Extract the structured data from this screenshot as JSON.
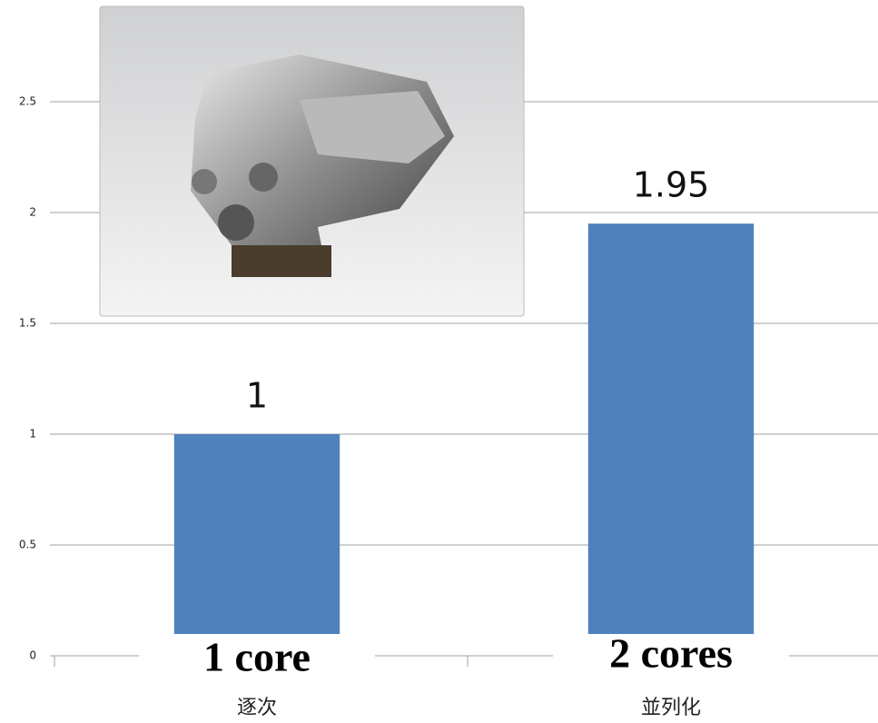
{
  "chart_data": {
    "type": "bar",
    "categories": [
      "逐次",
      "並列化"
    ],
    "values": [
      1,
      1.95
    ],
    "color": "#4f81bd",
    "ylim": [
      0,
      2.5
    ],
    "yticks": [
      0,
      0.5,
      1,
      1.5,
      2,
      2.5
    ],
    "grid": true,
    "annotations": [
      "1 core",
      "2 cores"
    ]
  }
}
